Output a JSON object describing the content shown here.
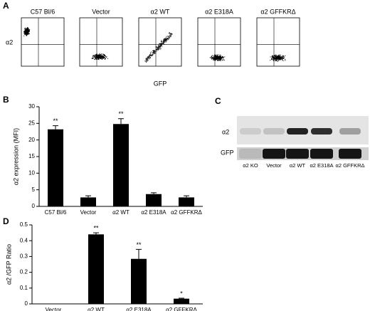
{
  "flow_panel": {
    "label": "A",
    "y_label": "α2",
    "x_label": "GFP",
    "plots": [
      "C57 Bl/6",
      "Vector",
      "α2 WT",
      "α2 E318A",
      "α2 GFFKRΔ"
    ]
  },
  "blot": {
    "label": "C",
    "rows": [
      "α2",
      "GFP"
    ],
    "lanes": [
      "α2 KO",
      "Vector",
      "α2 WT",
      "α2 E318A",
      "α2 GFFKRΔ"
    ]
  },
  "chart_data": [
    {
      "type": "bar",
      "label": "B",
      "y_label": "α2 expression (MFI)",
      "categories": [
        "C57 Bl/6",
        "Vector",
        "α2 WT",
        "α2 E318A",
        "α2 GFFKRΔ"
      ],
      "values": [
        23.2,
        2.7,
        24.8,
        3.7,
        2.7
      ],
      "errors": [
        1.1,
        0.5,
        1.6,
        0.4,
        0.5
      ],
      "value_annotations": [
        "**",
        null,
        "**",
        null,
        null
      ],
      "color": "#000000",
      "ylim": [
        0,
        30
      ],
      "yticks": [
        0,
        5,
        10,
        15,
        20,
        25,
        30
      ]
    },
    {
      "type": "bar",
      "label": "D",
      "y_label": "α2 /GFP Ratio",
      "categories": [
        "Vector",
        "α2 WT",
        "α2 E318A",
        "α2 GFFKRΔ"
      ],
      "values": [
        0,
        0.44,
        0.285,
        0.033
      ],
      "errors": [
        0,
        0.01,
        0.06,
        0.003
      ],
      "value_annotations": [
        null,
        "**",
        "**",
        "*"
      ],
      "color": "#000000",
      "ylim": [
        0,
        0.5
      ],
      "yticks": [
        0,
        0.1,
        0.2,
        0.3,
        0.4,
        0.5
      ]
    }
  ]
}
